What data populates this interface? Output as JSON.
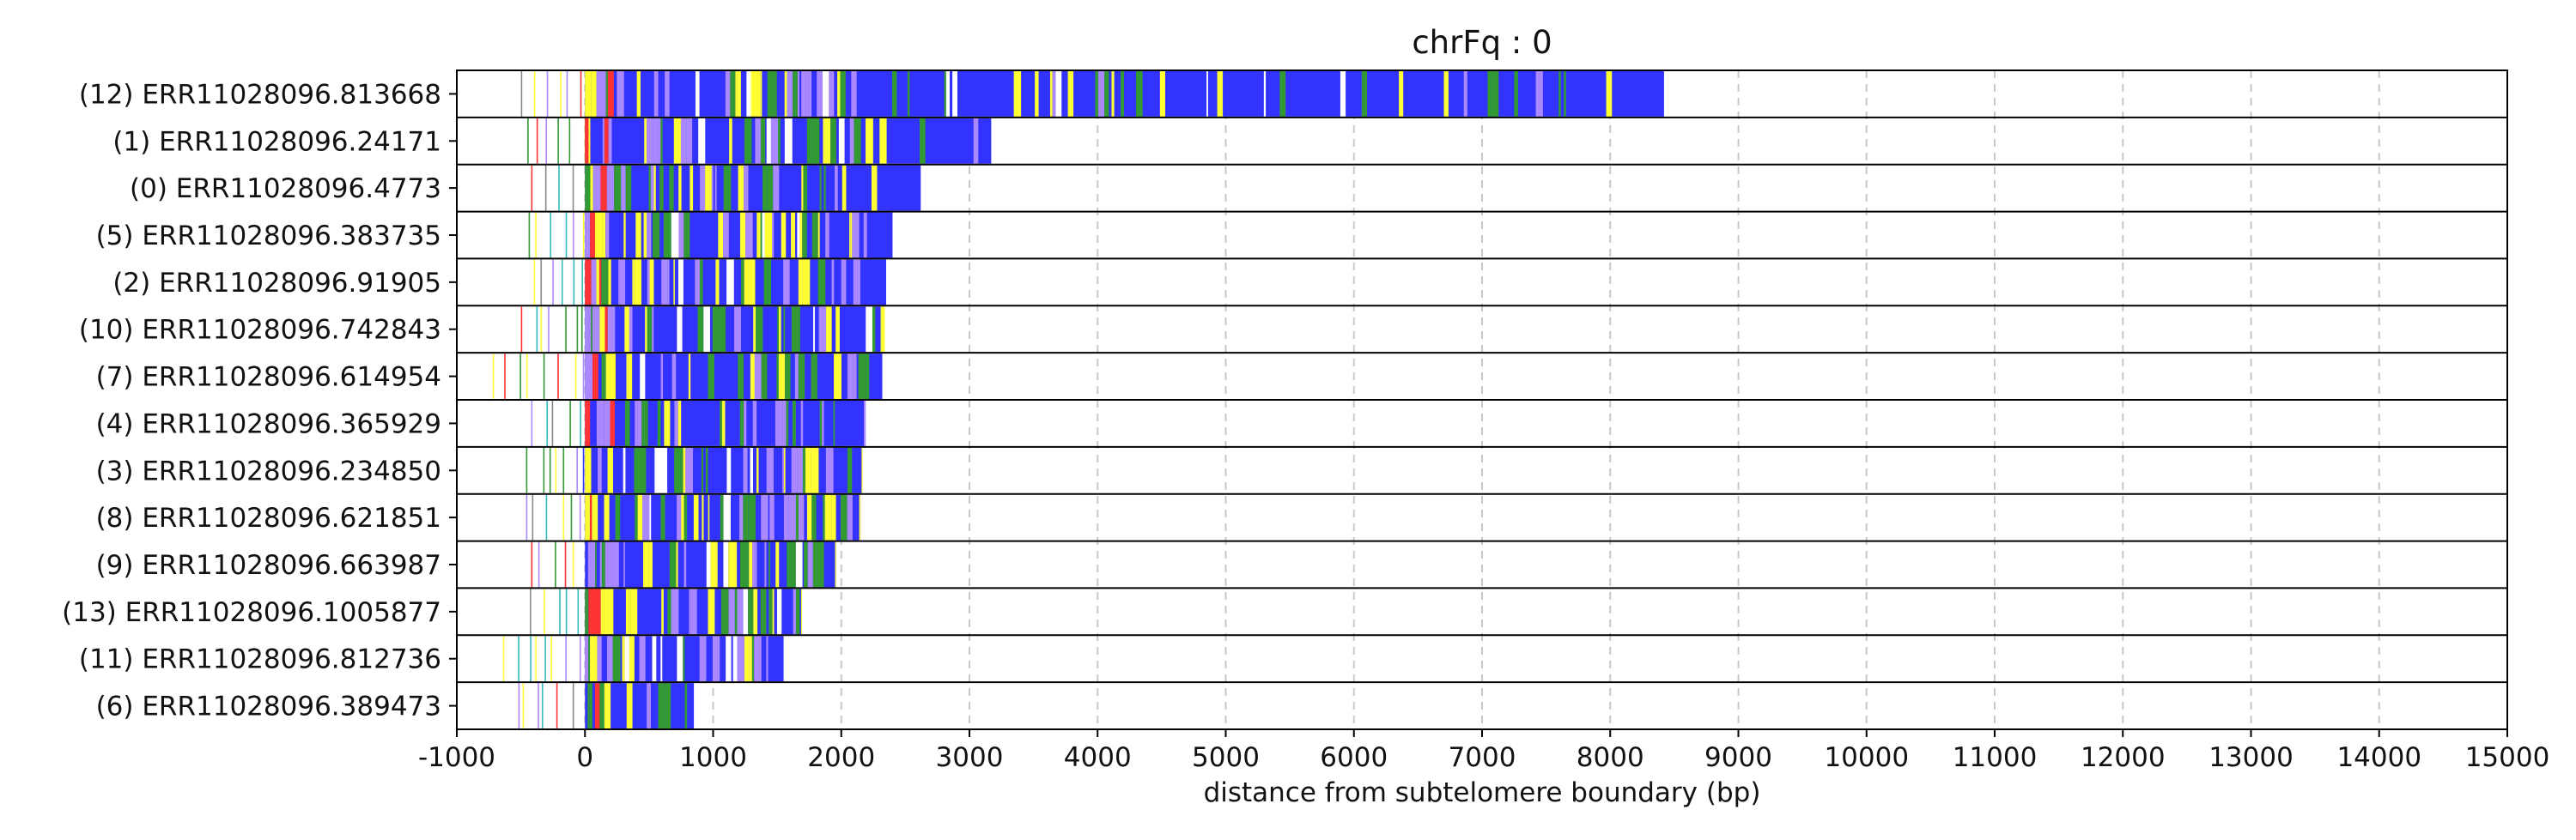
{
  "colors": {
    "blue": "#3333ff",
    "yellow": "#ffff33",
    "green": "#339933",
    "violet": "#aa88ff",
    "red": "#ff3333",
    "cyan": "#33bbbb",
    "gray": "#888888",
    "grid": "#c8c8c8",
    "frame": "#000000"
  },
  "chart_data": {
    "type": "bar",
    "title": "chrFq : 0",
    "xlabel": "distance from subtelomere boundary (bp)",
    "ylabel": "",
    "xlim": [
      -1000,
      15000
    ],
    "x_ticks": [
      "-1000",
      "0",
      "1000",
      "2000",
      "3000",
      "4000",
      "5000",
      "6000",
      "7000",
      "8000",
      "9000",
      "10000",
      "11000",
      "12000",
      "13000",
      "14000",
      "15000"
    ],
    "grid": "vertical dashed",
    "reads": [
      {
        "label": "(12) ERR11028096.813668",
        "start": -500,
        "end": 8420
      },
      {
        "label": "(1) ERR11028096.24171",
        "start": -450,
        "end": 3170
      },
      {
        "label": "(0) ERR11028096.4773",
        "start": -420,
        "end": 2620
      },
      {
        "label": "(5) ERR11028096.383735",
        "start": -440,
        "end": 2400
      },
      {
        "label": "(2) ERR11028096.91905",
        "start": -400,
        "end": 2350
      },
      {
        "label": "(10) ERR11028096.742843",
        "start": -500,
        "end": 2340
      },
      {
        "label": "(7) ERR11028096.614954",
        "start": -720,
        "end": 2320
      },
      {
        "label": "(4) ERR11028096.365929",
        "start": -420,
        "end": 2190
      },
      {
        "label": "(3) ERR11028096.234850",
        "start": -460,
        "end": 2160
      },
      {
        "label": "(8) ERR11028096.621851",
        "start": -460,
        "end": 2150
      },
      {
        "label": "(9) ERR11028096.663987",
        "start": -420,
        "end": 1960
      },
      {
        "label": "(13) ERR11028096.1005877",
        "start": -430,
        "end": 1690
      },
      {
        "label": "(11) ERR11028096.812736",
        "start": -640,
        "end": 1550
      },
      {
        "label": "(6) ERR11028096.389473",
        "start": -520,
        "end": 850
      }
    ]
  }
}
